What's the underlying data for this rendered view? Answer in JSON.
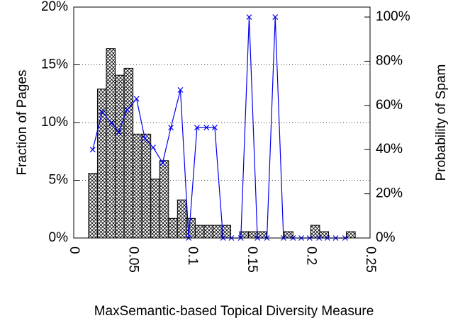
{
  "chart_data": {
    "type": "histogram",
    "xlabel": "MaxSemantic-based Topical Diversity Measure",
    "ylabel": "Fraction of Pages",
    "y2label": "Probability of Spam",
    "bins": [
      0.0125,
      0.02,
      0.0275,
      0.035,
      0.0425,
      0.05,
      0.0575,
      0.065,
      0.0725,
      0.08,
      0.0875,
      0.095,
      0.1025,
      0.11,
      0.1175,
      0.125,
      0.1325,
      0.14,
      0.1475,
      0.155,
      0.1625,
      0.17,
      0.1775,
      0.185,
      0.1925,
      0.2,
      0.2075,
      0.215,
      0.2225,
      0.23,
      0.2375
    ],
    "values": [
      5.6,
      12.9,
      16.4,
      14.1,
      14.7,
      9.0,
      9.0,
      5.1,
      6.7,
      1.7,
      3.3,
      1.7,
      1.1,
      1.1,
      1.1,
      1.1,
      0,
      0.55,
      0.55,
      0.55,
      0,
      0,
      0.55,
      0,
      0,
      1.1,
      0.55,
      0,
      0,
      0.55
    ],
    "color": "#000000",
    "line": {
      "axis": "y2",
      "color": "#0000ee",
      "x": [
        0.016,
        0.024,
        0.032,
        0.038,
        0.045,
        0.053,
        0.06,
        0.067,
        0.075,
        0.082,
        0.09,
        0.097,
        0.104,
        0.112,
        0.119,
        0.126,
        0.133,
        0.141,
        0.148,
        0.155,
        0.163,
        0.17,
        0.177,
        0.185,
        0.192,
        0.199,
        0.207,
        0.214,
        0.221,
        0.229
      ],
      "values": [
        40,
        57,
        52,
        48,
        58,
        63,
        45,
        41,
        34,
        50,
        67,
        0,
        50,
        50,
        50,
        0,
        0,
        0,
        100,
        0,
        0,
        100,
        0,
        0,
        0,
        0,
        0,
        0,
        0,
        0
      ]
    },
    "xlim": [
      0,
      0.25
    ],
    "xticks": [
      0,
      0.05,
      0.1,
      0.15,
      0.2,
      0.25
    ],
    "ylim": [
      0,
      20
    ],
    "yticks": [
      {
        "value": 0,
        "label": "0%"
      },
      {
        "value": 5,
        "label": "5%"
      },
      {
        "value": 10,
        "label": "10%"
      },
      {
        "value": 15,
        "label": "15%"
      },
      {
        "value": 20,
        "label": "20%"
      }
    ],
    "y2lim": [
      0,
      104.5
    ],
    "y2ticks": [
      {
        "value": 0,
        "label": "0%"
      },
      {
        "value": 20,
        "label": "20%"
      },
      {
        "value": 40,
        "label": "40%"
      },
      {
        "value": 60,
        "label": "60%"
      },
      {
        "value": 80,
        "label": "80%"
      },
      {
        "value": 100,
        "label": "100%"
      }
    ],
    "grid": true
  }
}
